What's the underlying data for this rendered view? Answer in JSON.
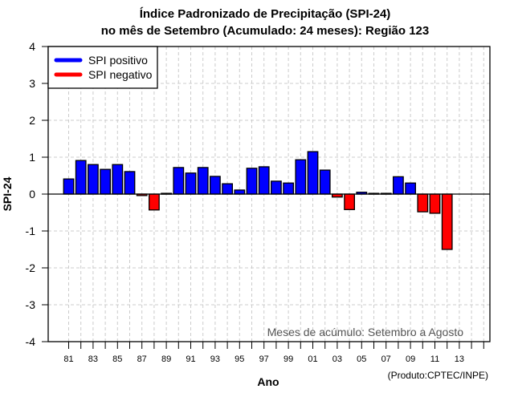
{
  "chart_data": {
    "type": "bar",
    "title": "Índice Padronizado de Precipitação (SPI-24)",
    "subtitle": "no mês de Setembro (Acumulado: 24 meses): Região 123",
    "xlabel": "Ano",
    "ylabel": "SPI-24",
    "ylim": [
      -4,
      4
    ],
    "yticks": [
      "4",
      "3",
      "2",
      "1",
      "0",
      "-1",
      "-2",
      "-3",
      "-4"
    ],
    "ytick_values": [
      4,
      3,
      2,
      1,
      0,
      -1,
      -2,
      -3,
      -4
    ],
    "xtick_labels": [
      "81",
      "83",
      "85",
      "87",
      "89",
      "91",
      "93",
      "95",
      "97",
      "99",
      "01",
      "03",
      "05",
      "07",
      "09",
      "11",
      "13"
    ],
    "categories": [
      "1981",
      "1982",
      "1983",
      "1984",
      "1985",
      "1986",
      "1987",
      "1988",
      "1989",
      "1990",
      "1991",
      "1992",
      "1993",
      "1994",
      "1995",
      "1996",
      "1997",
      "1998",
      "1999",
      "2000",
      "2001",
      "2002",
      "2003",
      "2004",
      "2005",
      "2006",
      "2007",
      "2008",
      "2009",
      "2010",
      "2011",
      "2012"
    ],
    "values": [
      0.41,
      0.91,
      0.8,
      0.67,
      0.8,
      0.61,
      -0.04,
      -0.43,
      0.02,
      0.72,
      0.57,
      0.72,
      0.48,
      0.28,
      0.11,
      0.7,
      0.74,
      0.35,
      0.3,
      0.93,
      1.15,
      0.65,
      -0.08,
      -0.42,
      0.05,
      0.02,
      0.02,
      0.47,
      0.3,
      -0.48,
      -0.52,
      -1.5
    ],
    "grid": true,
    "legend": {
      "placement": "top-left",
      "entries": [
        {
          "label": "SPI positivo",
          "color": "#0000ff"
        },
        {
          "label": "SPI negativo",
          "color": "#ff0000"
        }
      ]
    },
    "annotation": "Meses de acúmulo: Setembro a Agosto",
    "credit": "(Produto:CPTEC/INPE)",
    "colors": {
      "positive": "#0000ff",
      "negative": "#ff0000",
      "grid": "#cccccc"
    }
  }
}
